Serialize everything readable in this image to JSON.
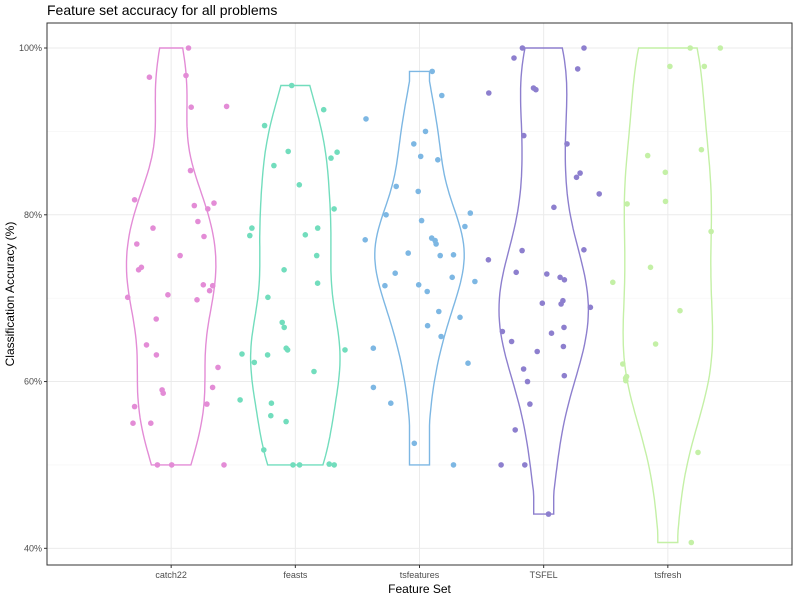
{
  "chart_data": {
    "type": "violin",
    "title": "Feature set accuracy for all problems",
    "xlabel": "Feature Set",
    "ylabel": "Classification Accuracy (%)",
    "y_ticks": [
      "40%",
      "60%",
      "80%",
      "100%"
    ],
    "y_tick_values": [
      40,
      60,
      80,
      100
    ],
    "ylim": [
      38,
      103
    ],
    "grid": true,
    "categories": [
      "catch22",
      "feasts",
      "tsfeatures",
      "TSFEL",
      "tsfresh"
    ],
    "series": [
      {
        "category": "catch22",
        "color": "#E38CD6",
        "range": [
          50,
          100
        ],
        "points": [
          100,
          96.5,
          96.7,
          93,
          92.9,
          85.3,
          81.8,
          81.4,
          81.1,
          80.7,
          79.2,
          78.4,
          77.4,
          76.5,
          75.1,
          73.7,
          73.4,
          71.6,
          71.5,
          70.9,
          70.1,
          70.4,
          69.8,
          67.5,
          64.4,
          63.2,
          61.7,
          59.3,
          59,
          58.6,
          57.3,
          57,
          55,
          55,
          50,
          50,
          50
        ]
      },
      {
        "category": "feasts",
        "color": "#72DDBD",
        "range": [
          50,
          95.5
        ],
        "points": [
          95.5,
          92.6,
          90.7,
          87.6,
          87.5,
          86.8,
          85.9,
          83.6,
          80.7,
          78.4,
          78.4,
          77.6,
          77.5,
          75.1,
          73.4,
          71.8,
          70.1,
          67.1,
          66.5,
          64,
          63.8,
          63.8,
          63.3,
          63.2,
          62.3,
          61.2,
          57.8,
          57.4,
          55.9,
          55.2,
          51.8,
          50.1,
          50,
          50,
          50
        ]
      },
      {
        "category": "tsfeatures",
        "color": "#7DB7E3",
        "range": [
          50,
          97.2
        ],
        "points": [
          97.2,
          94.3,
          91.5,
          90,
          88.5,
          87,
          86.6,
          83.4,
          82.8,
          80.2,
          80,
          79.3,
          78.6,
          77.2,
          77,
          76.9,
          76.5,
          75.4,
          75.2,
          75.1,
          73,
          72.5,
          72,
          71.6,
          71.5,
          70.8,
          68.4,
          67.7,
          66.7,
          65.4,
          64,
          62.2,
          59.3,
          57.4,
          52.6,
          50
        ]
      },
      {
        "category": "TSFEL",
        "color": "#8D7FCE",
        "range": [
          44.1,
          100
        ],
        "points": [
          100,
          100,
          98.8,
          97.5,
          95.2,
          95,
          94.6,
          89.5,
          88.5,
          85,
          84.5,
          82.5,
          80.9,
          75.8,
          75.7,
          74.6,
          73.1,
          72.9,
          72.5,
          72.2,
          69.7,
          69.4,
          69.3,
          68.9,
          66.5,
          66,
          65.8,
          64.8,
          64.2,
          63.6,
          61.5,
          60.7,
          60,
          57.3,
          54.2,
          50,
          50,
          44.1
        ]
      },
      {
        "category": "tsfresh",
        "color": "#C4F0A6",
        "range": [
          40.7,
          100
        ],
        "points": [
          100,
          100,
          97.8,
          97.8,
          87.8,
          87.1,
          85.1,
          81.6,
          81.3,
          78,
          73.7,
          71.9,
          68.5,
          64.5,
          62.1,
          60.6,
          60.4,
          60.1,
          51.5,
          40.7
        ]
      }
    ]
  }
}
